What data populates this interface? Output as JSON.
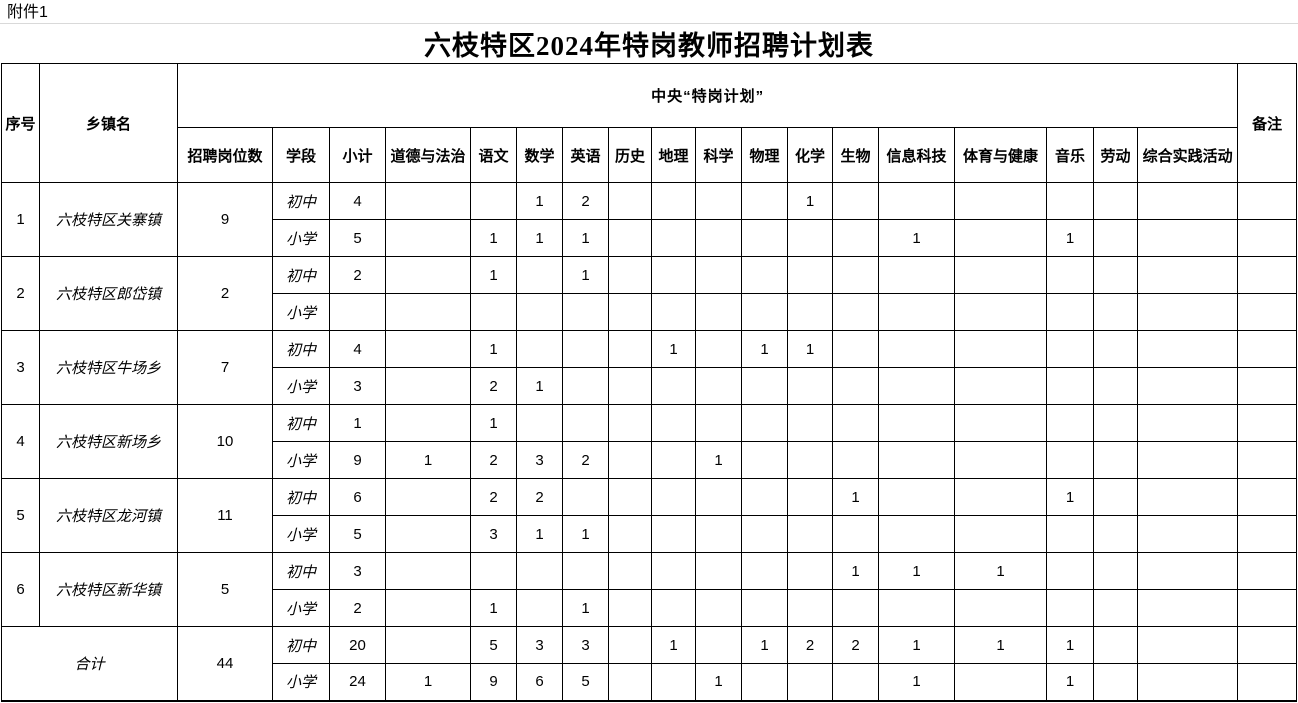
{
  "page": {
    "attachment_label": "附件1",
    "title": "六枝特区2024年特岗教师招聘计划表"
  },
  "colors": {
    "background": "#ffffff",
    "text": "#000000",
    "table_border": "#000000",
    "top_gridline": "#d9d9d9"
  },
  "table": {
    "header": {
      "seq": "序号",
      "township": "乡镇名",
      "central_plan": "中央“特岗计划”",
      "remark": "备注",
      "sub_columns": [
        "招聘岗位数",
        "学段",
        "小计",
        "道德与法治",
        "语文",
        "数学",
        "英语",
        "历史",
        "地理",
        "科学",
        "物理",
        "化学",
        "生物",
        "信息科技",
        "体育与健康",
        "音乐",
        "劳动",
        "综合实践活动"
      ]
    },
    "subject_order": [
      "道德与法治",
      "语文",
      "数学",
      "英语",
      "历史",
      "地理",
      "科学",
      "物理",
      "化学",
      "生物",
      "信息科技",
      "体育与健康",
      "音乐",
      "劳动",
      "综合实践活动"
    ],
    "rows": [
      {
        "seq": "1",
        "name": "六枝特区关寨镇",
        "positions": "9",
        "stages": [
          {
            "label": "初中",
            "subtotal": "4",
            "subjects": [
              "",
              "",
              "1",
              "2",
              "",
              "",
              "",
              "",
              "1",
              "",
              "",
              "",
              "",
              "",
              ""
            ]
          },
          {
            "label": "小学",
            "subtotal": "5",
            "subjects": [
              "",
              "1",
              "1",
              "1",
              "",
              "",
              "",
              "",
              "",
              "",
              "1",
              "",
              "1",
              "",
              ""
            ]
          }
        ]
      },
      {
        "seq": "2",
        "name": "六枝特区郎岱镇",
        "positions": "2",
        "stages": [
          {
            "label": "初中",
            "subtotal": "2",
            "subjects": [
              "",
              "1",
              "",
              "1",
              "",
              "",
              "",
              "",
              "",
              "",
              "",
              "",
              "",
              "",
              ""
            ]
          },
          {
            "label": "小学",
            "subtotal": "",
            "subjects": [
              "",
              "",
              "",
              "",
              "",
              "",
              "",
              "",
              "",
              "",
              "",
              "",
              "",
              "",
              ""
            ]
          }
        ]
      },
      {
        "seq": "3",
        "name": "六枝特区牛场乡",
        "positions": "7",
        "stages": [
          {
            "label": "初中",
            "subtotal": "4",
            "subjects": [
              "",
              "1",
              "",
              "",
              "",
              "1",
              "",
              "1",
              "1",
              "",
              "",
              "",
              "",
              "",
              ""
            ]
          },
          {
            "label": "小学",
            "subtotal": "3",
            "subjects": [
              "",
              "2",
              "1",
              "",
              "",
              "",
              "",
              "",
              "",
              "",
              "",
              "",
              "",
              "",
              ""
            ]
          }
        ]
      },
      {
        "seq": "4",
        "name": "六枝特区新场乡",
        "positions": "10",
        "stages": [
          {
            "label": "初中",
            "subtotal": "1",
            "subjects": [
              "",
              "1",
              "",
              "",
              "",
              "",
              "",
              "",
              "",
              "",
              "",
              "",
              "",
              "",
              ""
            ]
          },
          {
            "label": "小学",
            "subtotal": "9",
            "subjects": [
              "1",
              "2",
              "3",
              "2",
              "",
              "",
              "1",
              "",
              "",
              "",
              "",
              "",
              "",
              "",
              ""
            ]
          }
        ]
      },
      {
        "seq": "5",
        "name": "六枝特区龙河镇",
        "positions": "11",
        "stages": [
          {
            "label": "初中",
            "subtotal": "6",
            "subjects": [
              "",
              "2",
              "2",
              "",
              "",
              "",
              "",
              "",
              "",
              "1",
              "",
              "",
              "1",
              "",
              ""
            ]
          },
          {
            "label": "小学",
            "subtotal": "5",
            "subjects": [
              "",
              "3",
              "1",
              "1",
              "",
              "",
              "",
              "",
              "",
              "",
              "",
              "",
              "",
              "",
              ""
            ]
          }
        ]
      },
      {
        "seq": "6",
        "name": "六枝特区新华镇",
        "positions": "5",
        "stages": [
          {
            "label": "初中",
            "subtotal": "3",
            "subjects": [
              "",
              "",
              "",
              "",
              "",
              "",
              "",
              "",
              "",
              "1",
              "1",
              "1",
              "",
              "",
              ""
            ]
          },
          {
            "label": "小学",
            "subtotal": "2",
            "subjects": [
              "",
              "1",
              "",
              "1",
              "",
              "",
              "",
              "",
              "",
              "",
              "",
              "",
              "",
              "",
              ""
            ]
          }
        ]
      },
      {
        "is_total": true,
        "name": "合计",
        "positions": "44",
        "stages": [
          {
            "label": "初中",
            "subtotal": "20",
            "subjects": [
              "",
              "5",
              "3",
              "3",
              "",
              "1",
              "",
              "1",
              "2",
              "2",
              "1",
              "1",
              "1",
              "",
              ""
            ]
          },
          {
            "label": "小学",
            "subtotal": "24",
            "subjects": [
              "1",
              "9",
              "6",
              "5",
              "",
              "",
              "1",
              "",
              "",
              "",
              "1",
              "",
              "1",
              "",
              ""
            ]
          }
        ]
      }
    ]
  }
}
